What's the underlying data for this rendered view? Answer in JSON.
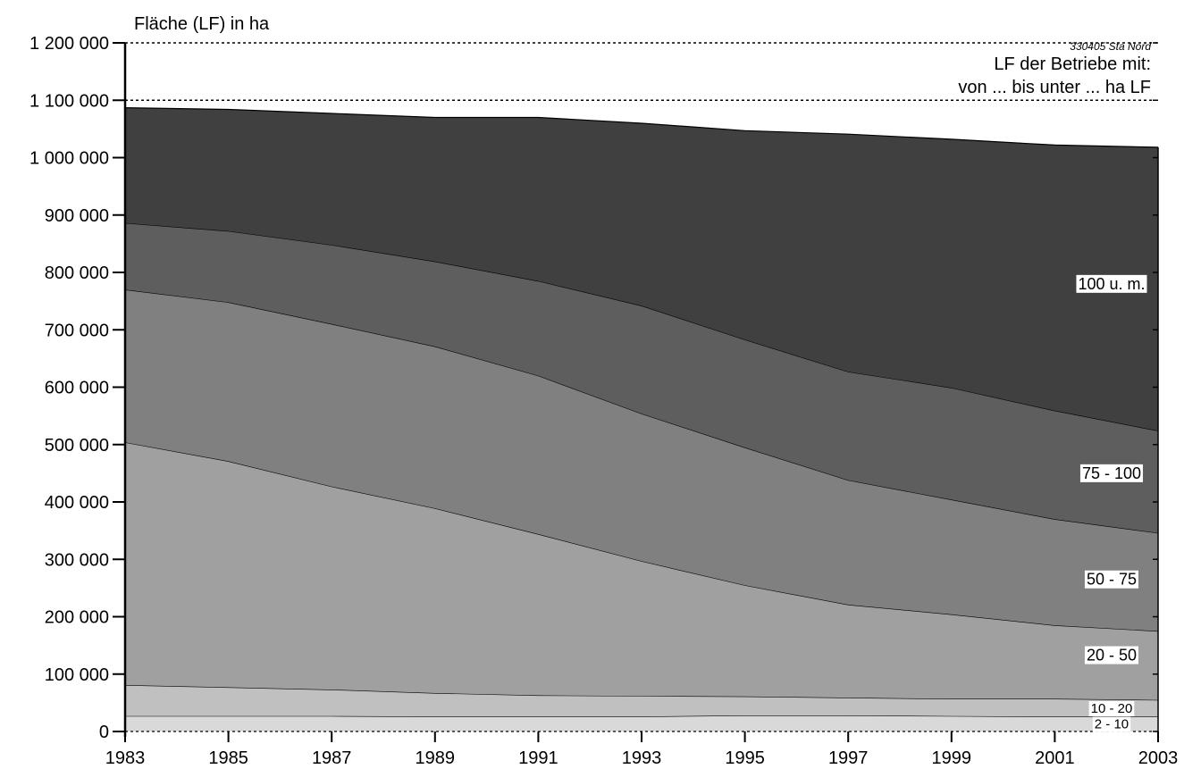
{
  "chart_data": {
    "type": "area",
    "stacked": true,
    "ylabel": "Fläche (LF) in ha",
    "source_note": "330405 Sta Nord",
    "legend_title_line1": "LF der Betriebe mit:",
    "legend_title_line2": "von ... bis unter ... ha LF",
    "ylim": [
      0,
      1200000
    ],
    "yticks": [
      0,
      100000,
      200000,
      300000,
      400000,
      500000,
      600000,
      700000,
      800000,
      900000,
      1000000,
      1100000,
      1200000
    ],
    "ytick_labels": [
      "0",
      "100 000",
      "200 000",
      "300 000",
      "400 000",
      "500 000",
      "600 000",
      "700 000",
      "800 000",
      "900 000",
      "1 000 000",
      "1 100 000",
      "1 200 000"
    ],
    "x": [
      1983,
      1985,
      1987,
      1989,
      1991,
      1993,
      1995,
      1997,
      1999,
      2001,
      2003
    ],
    "xtick_labels": [
      "1983",
      "1985",
      "1987",
      "1989",
      "1991",
      "1993",
      "1995",
      "1997",
      "1999",
      "2001",
      "2003"
    ],
    "grid": false,
    "series": [
      {
        "name": "2 - 10",
        "color": "#d9d9d9",
        "values": [
          27000,
          27000,
          27000,
          26000,
          26000,
          26000,
          28000,
          28000,
          27000,
          26000,
          26000
        ]
      },
      {
        "name": "10 - 20",
        "color": "#c0c0c0",
        "values": [
          54000,
          50000,
          46000,
          41000,
          37000,
          36000,
          33000,
          31000,
          30000,
          31000,
          29000
        ]
      },
      {
        "name": "20 - 50",
        "color": "#a0a0a0",
        "values": [
          423000,
          394000,
          354000,
          322000,
          281000,
          235000,
          194000,
          162000,
          147000,
          128000,
          120000
        ]
      },
      {
        "name": "50 - 75",
        "color": "#808080",
        "values": [
          266000,
          277000,
          283000,
          282000,
          276000,
          257000,
          240000,
          217000,
          200000,
          185000,
          171000
        ]
      },
      {
        "name": "75 - 100",
        "color": "#5e5e5e",
        "values": [
          116000,
          124000,
          138000,
          148000,
          165000,
          188000,
          188000,
          189000,
          195000,
          189000,
          178000
        ]
      },
      {
        "name": "100 u. m.",
        "color": "#404040",
        "values": [
          201000,
          212000,
          229000,
          251000,
          285000,
          318000,
          364000,
          414000,
          433000,
          463000,
          494000
        ]
      }
    ]
  }
}
